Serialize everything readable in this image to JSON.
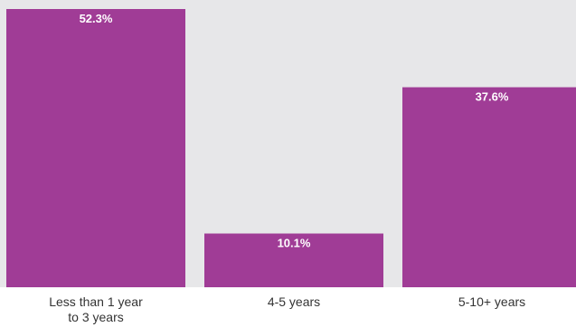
{
  "chart_data": {
    "type": "bar",
    "categories": [
      "Less than 1 year\nto 3 years",
      "4-5 years",
      "5-10+ years"
    ],
    "values": [
      52.3,
      10.1,
      37.6
    ],
    "value_labels": [
      "52.3%",
      "10.1%",
      "37.6%"
    ],
    "ylim": [
      0,
      52.3
    ],
    "grid": false,
    "colors": {
      "bar": "#a03c96",
      "plot_background": "#e7e7e9",
      "label_text": "#ffffff"
    }
  }
}
